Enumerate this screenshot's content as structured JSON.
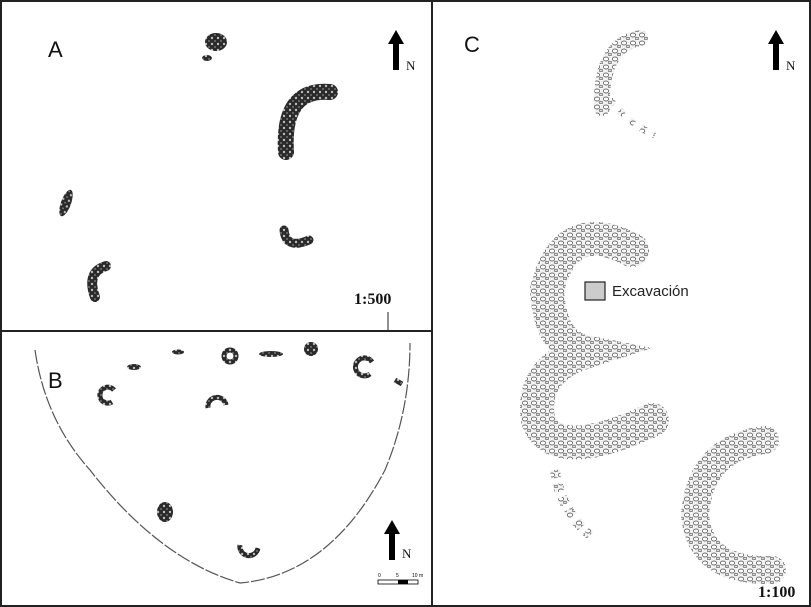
{
  "panels": [
    {
      "label": "A",
      "north": "N",
      "scale": "1:500"
    },
    {
      "label": "B",
      "north": "N",
      "scale_bar": [
        "0",
        "5",
        "10 m"
      ]
    },
    {
      "label": "C",
      "north": "N",
      "scale": "1:100",
      "legend": "Excavación"
    }
  ]
}
